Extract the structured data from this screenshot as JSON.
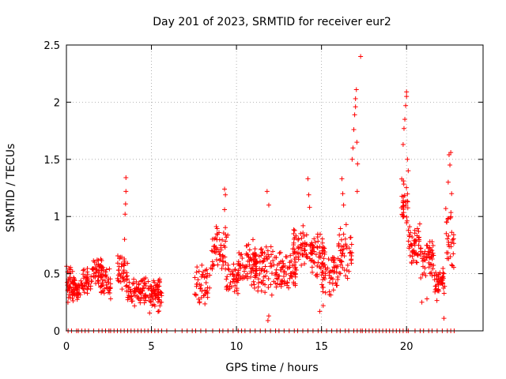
{
  "chart_data": {
    "type": "scatter",
    "title": "Day 201 of 2023, SRMTID for receiver eur2",
    "xlabel": "GPS time / hours",
    "ylabel": "SRMTID / TECUs",
    "xlim": [
      0,
      24.5
    ],
    "ylim": [
      0,
      2.5
    ],
    "x_ticks": [
      0,
      5,
      10,
      15,
      20
    ],
    "x_tick_labels": [
      "0",
      "5",
      "10",
      "15",
      "20"
    ],
    "y_ticks": [
      0,
      0.5,
      1,
      1.5,
      2,
      2.5
    ],
    "y_tick_labels": [
      "0",
      "0.5",
      "1",
      "1.5",
      "2",
      "2.5"
    ],
    "grid": true,
    "marker": "+",
    "color": "#ff0000",
    "clusters": [
      {
        "x": [
          0.0,
          0.5
        ],
        "y": [
          0.2,
          0.6
        ],
        "n": 55
      },
      {
        "x": [
          0.5,
          0.9
        ],
        "y": [
          0.25,
          0.45
        ],
        "n": 25
      },
      {
        "x": [
          0.9,
          1.5
        ],
        "y": [
          0.3,
          0.55
        ],
        "n": 35
      },
      {
        "x": [
          1.5,
          2.2
        ],
        "y": [
          0.35,
          0.7
        ],
        "n": 45
      },
      {
        "x": [
          2.0,
          2.6
        ],
        "y": [
          0.25,
          0.6
        ],
        "n": 40
      },
      {
        "x": [
          3.0,
          3.6
        ],
        "y": [
          0.3,
          0.7
        ],
        "n": 40
      },
      {
        "x": [
          3.6,
          4.7
        ],
        "y": [
          0.2,
          0.5
        ],
        "n": 70
      },
      {
        "x": [
          4.8,
          5.6
        ],
        "y": [
          0.15,
          0.5
        ],
        "n": 70
      },
      {
        "x": [
          7.5,
          8.5
        ],
        "y": [
          0.2,
          0.6
        ],
        "n": 45
      },
      {
        "x": [
          8.5,
          9.5
        ],
        "y": [
          0.5,
          0.95
        ],
        "n": 55
      },
      {
        "x": [
          9.4,
          10.2
        ],
        "y": [
          0.3,
          0.6
        ],
        "n": 40
      },
      {
        "x": [
          10.0,
          11.2
        ],
        "y": [
          0.35,
          0.85
        ],
        "n": 80
      },
      {
        "x": [
          11.0,
          12.3
        ],
        "y": [
          0.3,
          0.8
        ],
        "n": 70
      },
      {
        "x": [
          12.3,
          13.5
        ],
        "y": [
          0.35,
          0.7
        ],
        "n": 70
      },
      {
        "x": [
          13.3,
          14.2
        ],
        "y": [
          0.5,
          0.95
        ],
        "n": 55
      },
      {
        "x": [
          14.3,
          15.2
        ],
        "y": [
          0.4,
          0.9
        ],
        "n": 60
      },
      {
        "x": [
          15.0,
          16.0
        ],
        "y": [
          0.3,
          0.7
        ],
        "n": 55
      },
      {
        "x": [
          16.0,
          16.8
        ],
        "y": [
          0.45,
          0.9
        ],
        "n": 45
      },
      {
        "x": [
          19.7,
          20.1
        ],
        "y": [
          0.9,
          1.35
        ],
        "n": 30
      },
      {
        "x": [
          20.1,
          20.8
        ],
        "y": [
          0.55,
          0.95
        ],
        "n": 50
      },
      {
        "x": [
          20.8,
          21.6
        ],
        "y": [
          0.45,
          0.85
        ],
        "n": 50
      },
      {
        "x": [
          21.6,
          22.3
        ],
        "y": [
          0.25,
          0.6
        ],
        "n": 45
      },
      {
        "x": [
          22.3,
          22.8
        ],
        "y": [
          0.5,
          1.1
        ],
        "n": 30
      }
    ],
    "outliers": [
      {
        "x": 3.5,
        "y": 1.34
      },
      {
        "x": 3.5,
        "y": 1.22
      },
      {
        "x": 3.48,
        "y": 1.11
      },
      {
        "x": 3.45,
        "y": 1.02
      },
      {
        "x": 3.42,
        "y": 0.8
      },
      {
        "x": 9.3,
        "y": 1.24
      },
      {
        "x": 9.35,
        "y": 1.19
      },
      {
        "x": 9.3,
        "y": 1.06
      },
      {
        "x": 11.8,
        "y": 1.22
      },
      {
        "x": 11.9,
        "y": 1.1
      },
      {
        "x": 11.9,
        "y": 0.13
      },
      {
        "x": 11.85,
        "y": 0.09
      },
      {
        "x": 14.2,
        "y": 1.33
      },
      {
        "x": 14.25,
        "y": 1.19
      },
      {
        "x": 14.3,
        "y": 1.08
      },
      {
        "x": 14.9,
        "y": 0.17
      },
      {
        "x": 15.1,
        "y": 0.22
      },
      {
        "x": 16.2,
        "y": 1.33
      },
      {
        "x": 16.25,
        "y": 1.2
      },
      {
        "x": 16.3,
        "y": 1.1
      },
      {
        "x": 16.45,
        "y": 0.93
      },
      {
        "x": 16.8,
        "y": 1.5
      },
      {
        "x": 16.85,
        "y": 1.6
      },
      {
        "x": 16.9,
        "y": 1.76
      },
      {
        "x": 16.95,
        "y": 1.89
      },
      {
        "x": 17.0,
        "y": 1.96
      },
      {
        "x": 17.0,
        "y": 2.03
      },
      {
        "x": 17.05,
        "y": 2.11
      },
      {
        "x": 17.1,
        "y": 1.22
      },
      {
        "x": 17.08,
        "y": 1.65
      },
      {
        "x": 17.12,
        "y": 1.46
      },
      {
        "x": 17.3,
        "y": 2.4
      },
      {
        "x": 19.8,
        "y": 1.63
      },
      {
        "x": 19.85,
        "y": 1.77
      },
      {
        "x": 19.9,
        "y": 1.85
      },
      {
        "x": 19.95,
        "y": 1.97
      },
      {
        "x": 20.0,
        "y": 2.05
      },
      {
        "x": 20.0,
        "y": 2.09
      },
      {
        "x": 20.05,
        "y": 1.5
      },
      {
        "x": 20.1,
        "y": 1.4
      },
      {
        "x": 20.9,
        "y": 0.25
      },
      {
        "x": 21.2,
        "y": 0.28
      },
      {
        "x": 22.2,
        "y": 0.11
      },
      {
        "x": 22.5,
        "y": 1.54
      },
      {
        "x": 22.6,
        "y": 1.56
      },
      {
        "x": 22.55,
        "y": 1.45
      },
      {
        "x": 22.45,
        "y": 1.3
      },
      {
        "x": 22.65,
        "y": 1.2
      }
    ],
    "zero_values_x": [
      0.1,
      0.3,
      0.6,
      0.7,
      0.9,
      1.1,
      1.3,
      1.6,
      1.9,
      2.1,
      2.3,
      2.5,
      2.6,
      2.8,
      3.0,
      3.2,
      3.4,
      3.6,
      3.8,
      4.0,
      4.2,
      4.4,
      4.6,
      4.8,
      5.0,
      5.2,
      5.4,
      5.6,
      5.9,
      6.4,
      6.8,
      7.1,
      7.4,
      7.6,
      7.9,
      8.2,
      8.6,
      9.0,
      9.2,
      9.5,
      9.8,
      10.1,
      10.3,
      10.5,
      10.8,
      11.1,
      11.4,
      11.7,
      12.0,
      12.3,
      12.5,
      12.8,
      13.1,
      13.4,
      13.6,
      13.9,
      14.2,
      14.5,
      14.8,
      15.0,
      15.3,
      15.6,
      15.9,
      16.1,
      16.4,
      16.6,
      16.9,
      17.1,
      17.3,
      17.4,
      17.6,
      17.8,
      18.0,
      18.2,
      18.4,
      18.6,
      18.8,
      19.0,
      19.2,
      19.4,
      19.6,
      19.8,
      20.0,
      20.1,
      20.5,
      20.8,
      21.0,
      21.3,
      21.5,
      21.8,
      22.1,
      22.4,
      22.6,
      22.8
    ]
  }
}
